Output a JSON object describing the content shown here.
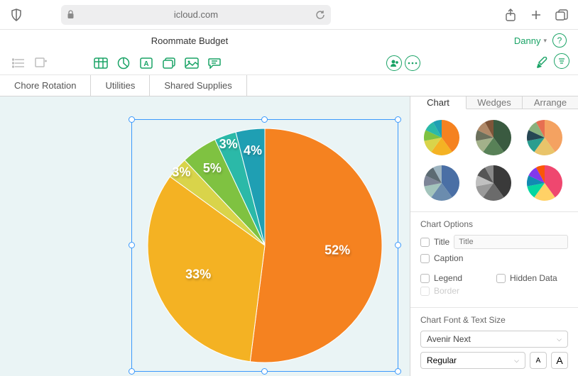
{
  "browser": {
    "url": "icloud.com"
  },
  "document": {
    "title": "Roommate Budget",
    "user": "Danny"
  },
  "tabs": [
    {
      "label": "Chore Rotation"
    },
    {
      "label": "Utilities"
    },
    {
      "label": "Shared Supplies"
    }
  ],
  "chart": {
    "type": "pie",
    "radius": 165,
    "slices": [
      {
        "value": 52,
        "label": "52%",
        "color": "#f58220"
      },
      {
        "value": 33,
        "label": "33%",
        "color": "#f4b223"
      },
      {
        "value": 3,
        "label": "3%",
        "color": "#d9d44a"
      },
      {
        "value": 5,
        "label": "5%",
        "color": "#7fc241"
      },
      {
        "value": 3,
        "label": "3%",
        "color": "#2bb9a8"
      },
      {
        "value": 4,
        "label": "4%",
        "color": "#1f9fb3"
      }
    ],
    "label_color": "#ffffff",
    "label_fontsize": 18,
    "selection_color": "#3b99fc",
    "canvas_bg": "#eaf4f5"
  },
  "inspector": {
    "tabs": [
      {
        "label": "Chart",
        "active": true
      },
      {
        "label": "Wedges",
        "active": false
      },
      {
        "label": "Arrange",
        "active": false
      }
    ],
    "style_palettes": [
      [
        "#f58220",
        "#f4b223",
        "#d9d44a",
        "#7fc241",
        "#2bb9a8",
        "#1f9fb3"
      ],
      [
        "#3a5a40",
        "#588157",
        "#a3b18a",
        "#6b705c",
        "#b08968",
        "#7f5539"
      ],
      [
        "#f4a261",
        "#e9c46a",
        "#2a9d8f",
        "#264653",
        "#8ab17d",
        "#e76f51"
      ],
      [
        "#4a6fa5",
        "#6b8cae",
        "#a3c4bc",
        "#7d8597",
        "#5c6b73",
        "#9db4c0"
      ],
      [
        "#3a3a3a",
        "#6b6b6b",
        "#9a9a9a",
        "#c0c0c0",
        "#555555",
        "#888888"
      ],
      [
        "#ef476f",
        "#ffd166",
        "#06d6a0",
        "#118ab2",
        "#8338ec",
        "#fb5607"
      ]
    ],
    "options_title": "Chart Options",
    "options": {
      "title_label": "Title",
      "title_placeholder": "Title",
      "caption_label": "Caption",
      "legend_label": "Legend",
      "hidden_data_label": "Hidden Data",
      "border_label": "Border"
    },
    "font_section_title": "Chart Font & Text Size",
    "font_family": "Avenir Next",
    "font_weight": "Regular"
  }
}
